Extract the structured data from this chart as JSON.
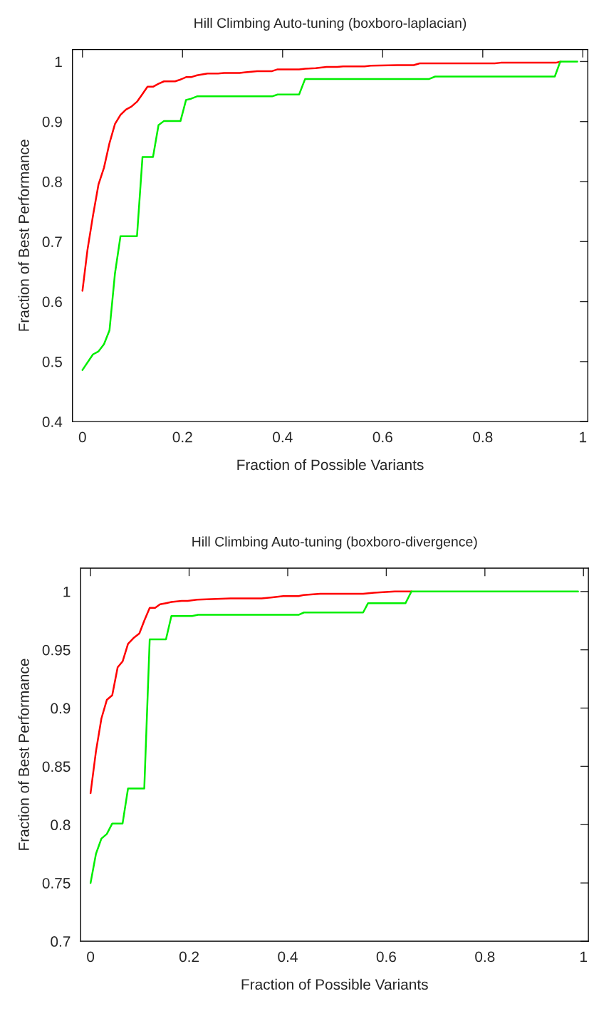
{
  "chart_data": [
    {
      "type": "line",
      "title": "Hill Climbing Auto-tuning (boxboro-laplacian)",
      "xlabel": "Fraction of Possible Variants",
      "ylabel": "Fraction of Best Performance",
      "xlim": [
        -0.02,
        1.01
      ],
      "ylim": [
        0.4,
        1.02
      ],
      "xticks": [
        0,
        0.2,
        0.4,
        0.6,
        0.8,
        1
      ],
      "yticks": [
        0.4,
        0.5,
        0.6,
        0.7,
        0.8,
        0.9,
        1
      ],
      "grid": false,
      "legend": false,
      "line_style": "solid",
      "series": [
        {
          "color": "#ff0000",
          "x": [
            0,
            0.01,
            0.021,
            0.032,
            0.043,
            0.054,
            0.065,
            0.076,
            0.087,
            0.098,
            0.109,
            0.12,
            0.13,
            0.141,
            0.152,
            0.163,
            0.185,
            0.196,
            0.207,
            0.217,
            0.229,
            0.25,
            0.271,
            0.283,
            0.314,
            0.326,
            0.349,
            0.379,
            0.39,
            0.433,
            0.445,
            0.466,
            0.488,
            0.509,
            0.521,
            0.564,
            0.576,
            0.629,
            0.662,
            0.674,
            0.824,
            0.836,
            0.946,
            0.956
          ],
          "values": [
            0.618,
            0.686,
            0.743,
            0.795,
            0.823,
            0.864,
            0.896,
            0.911,
            0.92,
            0.925,
            0.933,
            0.946,
            0.958,
            0.958,
            0.963,
            0.967,
            0.967,
            0.97,
            0.974,
            0.974,
            0.977,
            0.98,
            0.98,
            0.981,
            0.981,
            0.982,
            0.984,
            0.984,
            0.987,
            0.987,
            0.988,
            0.989,
            0.991,
            0.991,
            0.992,
            0.992,
            0.993,
            0.994,
            0.994,
            0.997,
            0.997,
            0.998,
            0.998,
            1.0
          ]
        },
        {
          "color": "#00ee00",
          "x": [
            0,
            0.021,
            0.032,
            0.043,
            0.054,
            0.065,
            0.076,
            0.109,
            0.12,
            0.141,
            0.152,
            0.163,
            0.196,
            0.207,
            0.217,
            0.229,
            0.379,
            0.39,
            0.433,
            0.445,
            0.693,
            0.705,
            0.944,
            0.955,
            0.989
          ],
          "values": [
            0.486,
            0.512,
            0.517,
            0.529,
            0.552,
            0.647,
            0.709,
            0.709,
            0.841,
            0.841,
            0.894,
            0.901,
            0.901,
            0.936,
            0.938,
            0.942,
            0.942,
            0.945,
            0.945,
            0.971,
            0.971,
            0.975,
            0.975,
            1.0,
            1.0
          ]
        }
      ]
    },
    {
      "type": "line",
      "title": "Hill Climbing Auto-tuning (boxboro-divergence)",
      "xlabel": "Fraction of Possible Variants",
      "ylabel": "Fraction of Best Performance",
      "xlim": [
        -0.02,
        1.01
      ],
      "ylim": [
        0.7,
        1.02
      ],
      "xticks": [
        0,
        0.2,
        0.4,
        0.6,
        0.8,
        1
      ],
      "yticks": [
        0.7,
        0.75,
        0.8,
        0.85,
        0.9,
        0.95,
        1
      ],
      "grid": false,
      "legend": false,
      "line_style": "solid",
      "series": [
        {
          "color": "#ff0000",
          "x": [
            0,
            0.011,
            0.022,
            0.033,
            0.044,
            0.055,
            0.065,
            0.076,
            0.087,
            0.099,
            0.109,
            0.12,
            0.131,
            0.141,
            0.153,
            0.164,
            0.185,
            0.197,
            0.216,
            0.284,
            0.347,
            0.369,
            0.391,
            0.422,
            0.432,
            0.466,
            0.553,
            0.575,
            0.617,
            0.651
          ],
          "values": [
            0.827,
            0.863,
            0.891,
            0.907,
            0.911,
            0.935,
            0.94,
            0.955,
            0.96,
            0.964,
            0.975,
            0.986,
            0.986,
            0.989,
            0.99,
            0.991,
            0.992,
            0.992,
            0.993,
            0.994,
            0.994,
            0.995,
            0.996,
            0.996,
            0.997,
            0.998,
            0.998,
            0.999,
            1.0,
            1.0
          ]
        },
        {
          "color": "#00ee00",
          "x": [
            0,
            0.011,
            0.022,
            0.033,
            0.044,
            0.065,
            0.076,
            0.109,
            0.12,
            0.153,
            0.164,
            0.206,
            0.218,
            0.422,
            0.433,
            0.553,
            0.563,
            0.639,
            0.651,
            0.989
          ],
          "values": [
            0.75,
            0.775,
            0.788,
            0.792,
            0.801,
            0.801,
            0.831,
            0.831,
            0.959,
            0.959,
            0.979,
            0.979,
            0.98,
            0.98,
            0.982,
            0.982,
            0.99,
            0.99,
            1.0,
            1.0
          ]
        }
      ]
    }
  ]
}
